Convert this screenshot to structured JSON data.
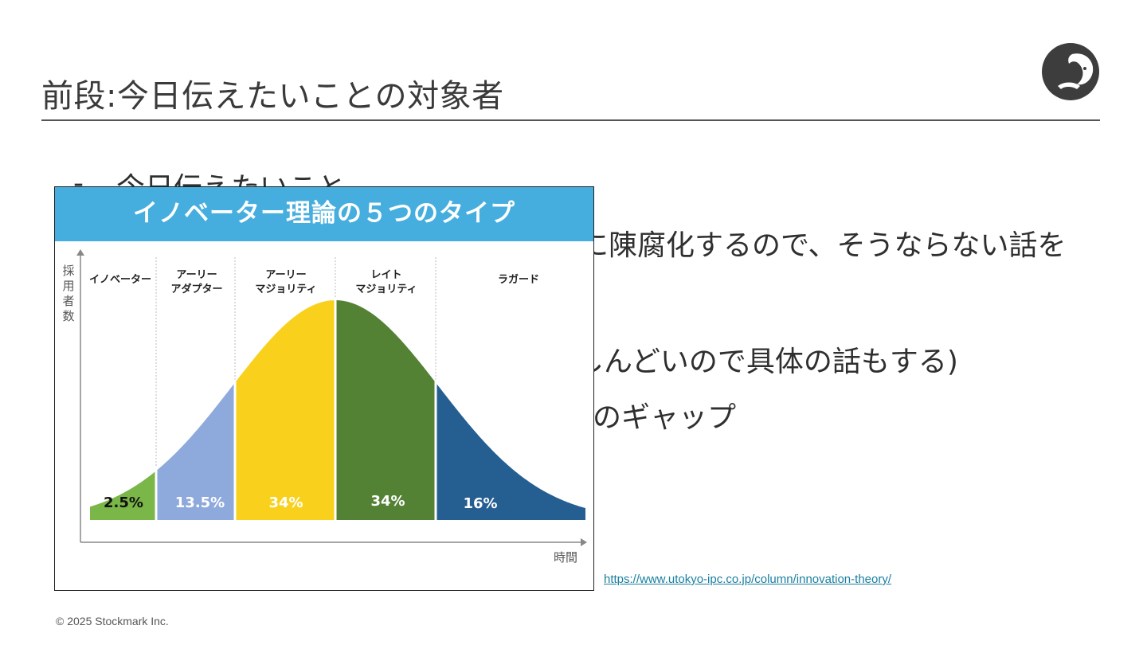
{
  "slide": {
    "title": "前段:今日伝えたいことの対象者",
    "footer": "© 2025 Stockmark Inc.",
    "source_link": "https://www.utokyo-ipc.co.jp/column/innovation-theory/",
    "bullets": {
      "dash": "-",
      "line1": "今日伝えたいこと",
      "line2_visible": "に陳腐化するので、そうならない話を",
      "line3_visible": "しんどいので具体の話もする)",
      "line4_visible": "のギャップ"
    }
  },
  "chart_data": {
    "type": "area",
    "title": "イノベーター理論の５つのタイプ",
    "ylabel": "採用者数",
    "xlabel": "時間",
    "segments": [
      {
        "name": "イノベーター",
        "label_lines": [
          "イノベーター"
        ],
        "value": 2.5,
        "value_label": "2.5%",
        "color": "#7ab648"
      },
      {
        "name": "アーリーアダプター",
        "label_lines": [
          "アーリー",
          "アダプター"
        ],
        "value": 13.5,
        "value_label": "13.5%",
        "color": "#8ea9db"
      },
      {
        "name": "アーリーマジョリティ",
        "label_lines": [
          "アーリー",
          "マジョリティ"
        ],
        "value": 34,
        "value_label": "34%",
        "color": "#f9d11c"
      },
      {
        "name": "レイトマジョリティ",
        "label_lines": [
          "レイト",
          "マジョリティ"
        ],
        "value": 34,
        "value_label": "34%",
        "color": "#548235"
      },
      {
        "name": "ラガード",
        "label_lines": [
          "ラガード"
        ],
        "value": 16,
        "value_label": "16%",
        "color": "#255e91"
      }
    ],
    "colors": {
      "header": "#46aede",
      "axis": "#888888",
      "divider": "#bbbbbb"
    }
  }
}
